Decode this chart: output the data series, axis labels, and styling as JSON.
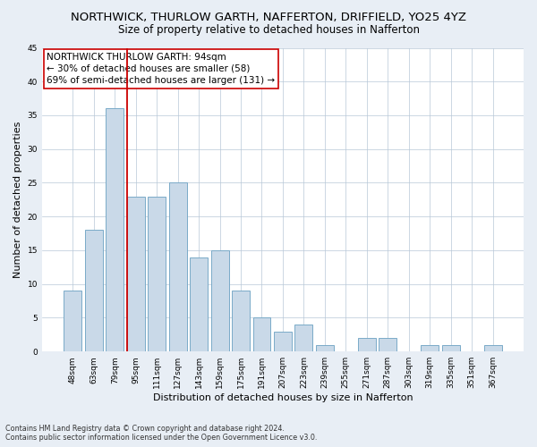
{
  "title": "NORTHWICK, THURLOW GARTH, NAFFERTON, DRIFFIELD, YO25 4YZ",
  "subtitle": "Size of property relative to detached houses in Nafferton",
  "xlabel": "Distribution of detached houses by size in Nafferton",
  "ylabel": "Number of detached properties",
  "categories": [
    "48sqm",
    "63sqm",
    "79sqm",
    "95sqm",
    "111sqm",
    "127sqm",
    "143sqm",
    "159sqm",
    "175sqm",
    "191sqm",
    "207sqm",
    "223sqm",
    "239sqm",
    "255sqm",
    "271sqm",
    "287sqm",
    "303sqm",
    "319sqm",
    "335sqm",
    "351sqm",
    "367sqm"
  ],
  "values": [
    9,
    18,
    36,
    23,
    23,
    25,
    14,
    15,
    9,
    5,
    3,
    4,
    1,
    0,
    2,
    2,
    0,
    1,
    1,
    0,
    1
  ],
  "bar_color": "#c9d9e8",
  "bar_edge_color": "#7aaac8",
  "vline_color": "#cc0000",
  "annotation_title": "NORTHWICK THURLOW GARTH: 94sqm",
  "annotation_line1": "← 30% of detached houses are smaller (58)",
  "annotation_line2": "69% of semi-detached houses are larger (131) →",
  "annotation_box_color": "#ffffff",
  "annotation_box_edge": "#cc0000",
  "ylim": [
    0,
    45
  ],
  "yticks": [
    0,
    5,
    10,
    15,
    20,
    25,
    30,
    35,
    40,
    45
  ],
  "footnote1": "Contains HM Land Registry data © Crown copyright and database right 2024.",
  "footnote2": "Contains public sector information licensed under the Open Government Licence v3.0.",
  "bg_color": "#e8eef5",
  "plot_bg_color": "#ffffff",
  "title_fontsize": 9.5,
  "subtitle_fontsize": 8.5,
  "tick_fontsize": 6.5,
  "label_fontsize": 8,
  "annotation_fontsize": 7.5,
  "footnote_fontsize": 5.8
}
